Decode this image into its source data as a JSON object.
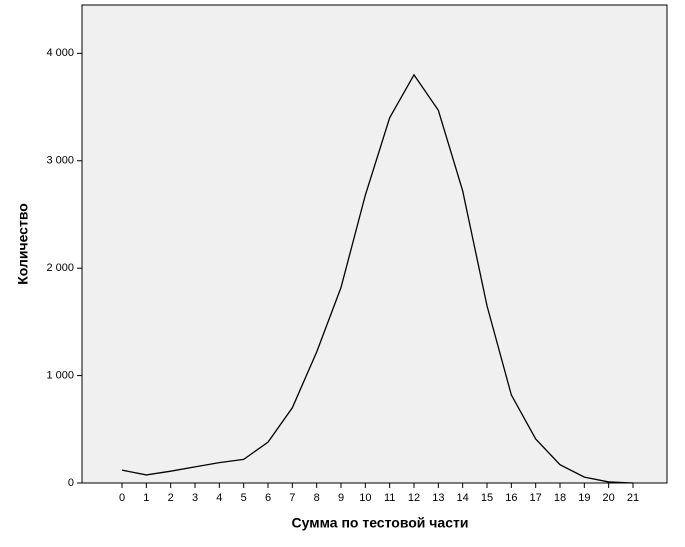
{
  "chart_data": {
    "type": "line",
    "xlabel": "Сумма по тестовой части",
    "ylabel": "Количество",
    "categories": [
      "0",
      "1",
      "2",
      "3",
      "4",
      "5",
      "6",
      "7",
      "8",
      "9",
      "10",
      "11",
      "12",
      "13",
      "14",
      "15",
      "16",
      "17",
      "18",
      "19",
      "20",
      "21"
    ],
    "values": [
      120,
      75,
      110,
      150,
      190,
      220,
      380,
      700,
      1220,
      1820,
      2680,
      3400,
      3800,
      3470,
      2720,
      1650,
      820,
      410,
      170,
      55,
      10,
      0
    ],
    "color": "#000000",
    "ylim": [
      0,
      4450
    ],
    "yticks": [
      0,
      {
        "value": 1000,
        "label": "1 000"
      },
      {
        "value": 2000,
        "label": "2 000"
      },
      {
        "value": 3000,
        "label": "3 000"
      },
      {
        "value": 4000,
        "label": "4 000"
      }
    ]
  }
}
